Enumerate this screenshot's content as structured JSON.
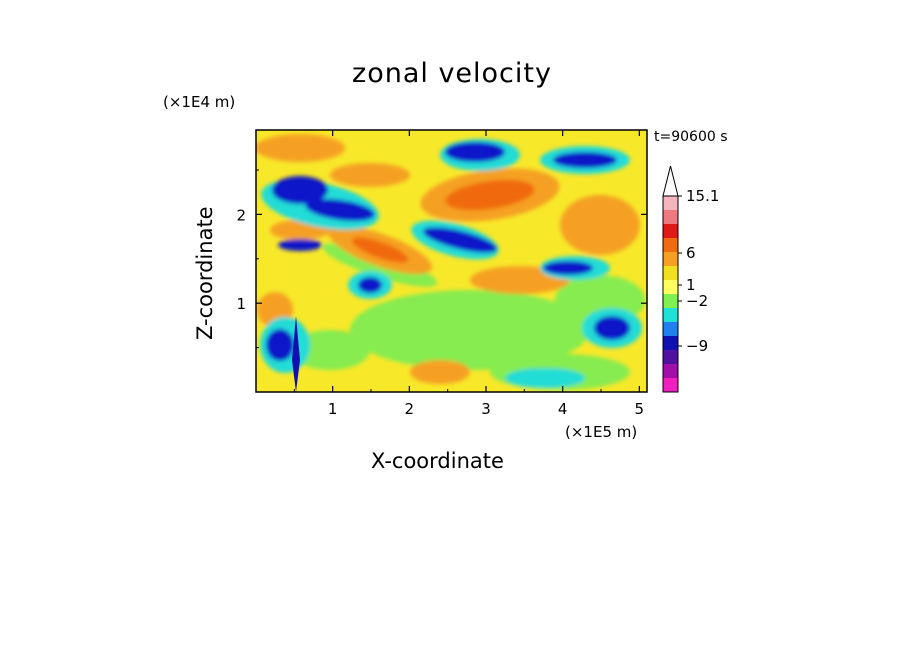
{
  "chart_data": {
    "type": "heatmap",
    "title": "zonal velocity",
    "xlabel": "X-coordinate",
    "ylabel": "Z-coordinate",
    "x_scale_label": "(×1E5 m)",
    "y_scale_label": "(×1E4 m)",
    "annotation": "t=90600 s",
    "xlim": [
      0,
      5.1
    ],
    "ylim": [
      0,
      2.95
    ],
    "x_ticks": [
      "1",
      "2",
      "3",
      "4",
      "5"
    ],
    "y_ticks": [
      "1",
      "2"
    ],
    "colorbar": {
      "labels": [
        "15.1",
        "6",
        "1",
        "−2",
        "−9"
      ],
      "colors": [
        "#ffffff",
        "#f5b5bf",
        "#ee7a80",
        "#e01818",
        "#f06a10",
        "#f5a023",
        "#f0e020",
        "#ffff60",
        "#80f050",
        "#20e0d8",
        "#2080f0",
        "#1010b0",
        "#5010a0",
        "#a010a8",
        "#f020c0"
      ]
    },
    "field_description": "alternating positive (orange/red) and negative (blue) velocity bands tilted in the upper half; mixed yellow/green small-scale structure near the bottom"
  }
}
